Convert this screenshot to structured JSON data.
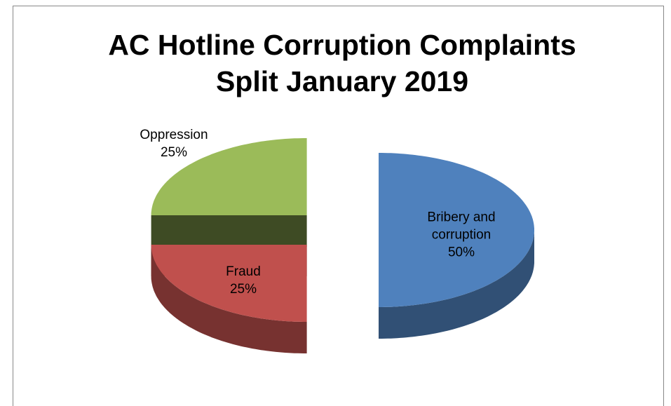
{
  "chart_data": {
    "type": "pie3d",
    "title": "AC Hotline Corruption Complaints Split January 2019",
    "categories": [
      "Bribery and corruption",
      "Fraud",
      "Oppression"
    ],
    "values": [
      50,
      25,
      25
    ],
    "value_labels": [
      "50%",
      "25%",
      "25%"
    ],
    "colors": [
      "#4f81bd",
      "#c0504d",
      "#9bbb59"
    ]
  }
}
